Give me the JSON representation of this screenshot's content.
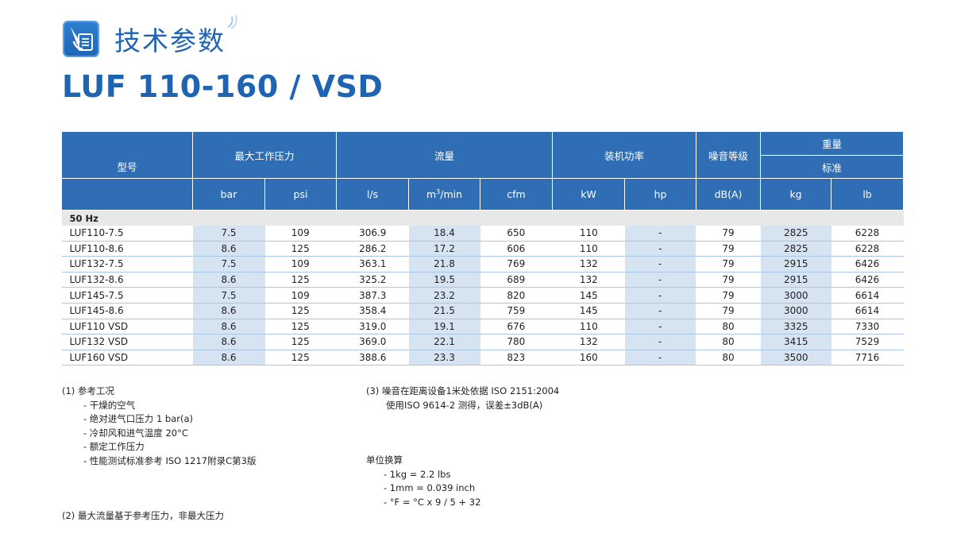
{
  "header": {
    "section_title": "技术参数",
    "model_title": "LUF 110-160 / VSD",
    "icon": "document-pointer-icon",
    "decor_icon": "signal-arc-icon"
  },
  "colors": {
    "brand_blue": "#1f64b3",
    "header_fill": "#2f6db5",
    "cell_shade": "#d6e3f1",
    "row_line": "#a9c6e6"
  },
  "table": {
    "head": {
      "model": "型号",
      "max_pressure": "最大工作压力",
      "flow": "流量",
      "power": "装机功率",
      "noise": "噪音等级",
      "weight": "重量",
      "weight_sub": "标准"
    },
    "units": {
      "bar": "bar",
      "psi": "psi",
      "ls": "l/s",
      "m3min_pre": "m",
      "m3min_sup": "3",
      "m3min_post": "/min",
      "cfm": "cfm",
      "kw": "kW",
      "hp": "hp",
      "dba": "dB(A)",
      "kg": "kg",
      "lb": "lb"
    },
    "group_label": "50 Hz",
    "rows": [
      [
        "LUF110-7.5",
        "7.5",
        "109",
        "306.9",
        "18.4",
        "650",
        "110",
        "-",
        "79",
        "2825",
        "6228"
      ],
      [
        "LUF110-8.6",
        "8.6",
        "125",
        "286.2",
        "17.2",
        "606",
        "110",
        "-",
        "79",
        "2825",
        "6228"
      ],
      [
        "LUF132-7.5",
        "7.5",
        "109",
        "363.1",
        "21.8",
        "769",
        "132",
        "-",
        "79",
        "2915",
        "6426"
      ],
      [
        "LUF132-8.6",
        "8.6",
        "125",
        "325.2",
        "19.5",
        "689",
        "132",
        "-",
        "79",
        "2915",
        "6426"
      ],
      [
        "LUF145-7.5",
        "7.5",
        "109",
        "387.3",
        "23.2",
        "820",
        "145",
        "-",
        "79",
        "3000",
        "6614"
      ],
      [
        "LUF145-8.6",
        "8.6",
        "125",
        "358.4",
        "21.5",
        "759",
        "145",
        "-",
        "79",
        "3000",
        "6614"
      ],
      [
        "LUF110 VSD",
        "8.6",
        "125",
        "319.0",
        "19.1",
        "676",
        "110",
        "-",
        "80",
        "3325",
        "7330"
      ],
      [
        "LUF132 VSD",
        "8.6",
        "125",
        "369.0",
        "22.1",
        "780",
        "132",
        "-",
        "80",
        "3415",
        "7529"
      ],
      [
        "LUF160 VSD",
        "8.6",
        "125",
        "388.6",
        "23.3",
        "823",
        "160",
        "-",
        "80",
        "3500",
        "7716"
      ]
    ]
  },
  "notes": {
    "note1_title": "(1)  参考工况",
    "note1_items": [
      "- 干燥的空气",
      "- 绝对进气口压力 1 bar(a)",
      "- 冷却风和进气温度 20°C",
      "- 额定工作压力",
      "- 性能测试标准参考 ISO 1217附录C第3版"
    ],
    "note2": "(2)  最大流量基于参考压力，非最大压力",
    "note3_line1": "(3)  噪音在距离设备1米处依据 ISO 2151:2004",
    "note3_line2": "使用ISO 9614-2 测得，误差±3dB(A)",
    "units_title": "单位换算",
    "units_items": [
      "- 1kg = 2.2 lbs",
      "- 1mm = 0.039 inch",
      "- °F = °C x 9 / 5 + 32"
    ]
  }
}
